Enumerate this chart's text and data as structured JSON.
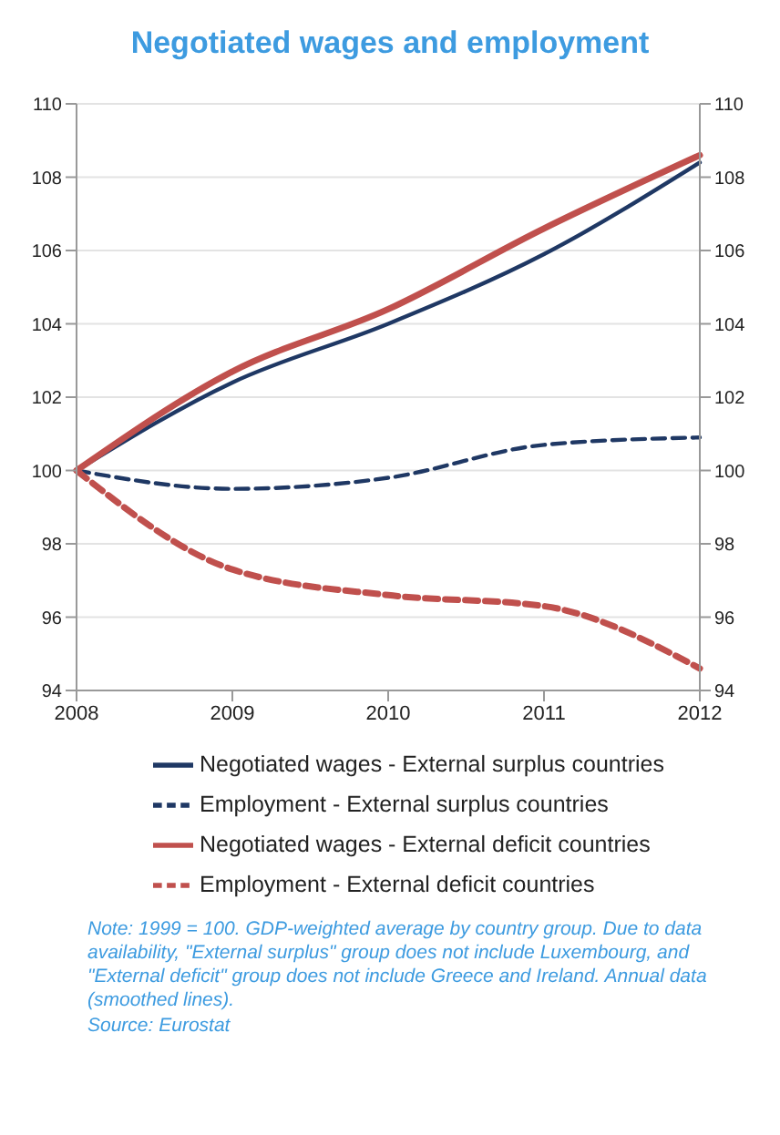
{
  "chart_data": {
    "type": "line",
    "title": "Negotiated wages and employment",
    "categories": [
      "2008",
      "2009",
      "2010",
      "2011",
      "2012"
    ],
    "series": [
      {
        "name": "Negotiated wages -  External surplus countries",
        "color": "#1f3864",
        "line_style": "solid",
        "values": [
          100,
          102.4,
          104.0,
          105.9,
          108.4
        ]
      },
      {
        "name": "Employment -  External surplus countries",
        "color": "#1f3864",
        "line_style": "dashed",
        "values": [
          100,
          99.5,
          99.8,
          100.7,
          100.9
        ]
      },
      {
        "name": "Negotiated wages - External deficit countries",
        "color": "#c0504d",
        "line_style": "solid",
        "values": [
          100,
          102.7,
          104.4,
          106.6,
          108.6
        ]
      },
      {
        "name": "Employment -  External deficit countries",
        "color": "#c0504d",
        "line_style": "dashed",
        "values": [
          100,
          97.3,
          96.6,
          96.3,
          94.6
        ]
      }
    ],
    "ylim": [
      94,
      110
    ],
    "yticks": [
      94,
      96,
      98,
      100,
      102,
      104,
      106,
      108,
      110
    ],
    "y2lim": [
      94,
      110
    ],
    "y2ticks": [
      94,
      96,
      98,
      100,
      102,
      104,
      106,
      108,
      110
    ],
    "grid": "y",
    "legend": "bottom",
    "marker": "none",
    "annotations": [
      "Note: 1999 = 100. GDP-weighted average by country group. Due to data availability, \"External surplus\" group does not include Luxembourg, and \"External deficit\" group does not include Greece and Ireland. Annual data (smoothed lines).",
      "Source: Eurostat"
    ]
  }
}
